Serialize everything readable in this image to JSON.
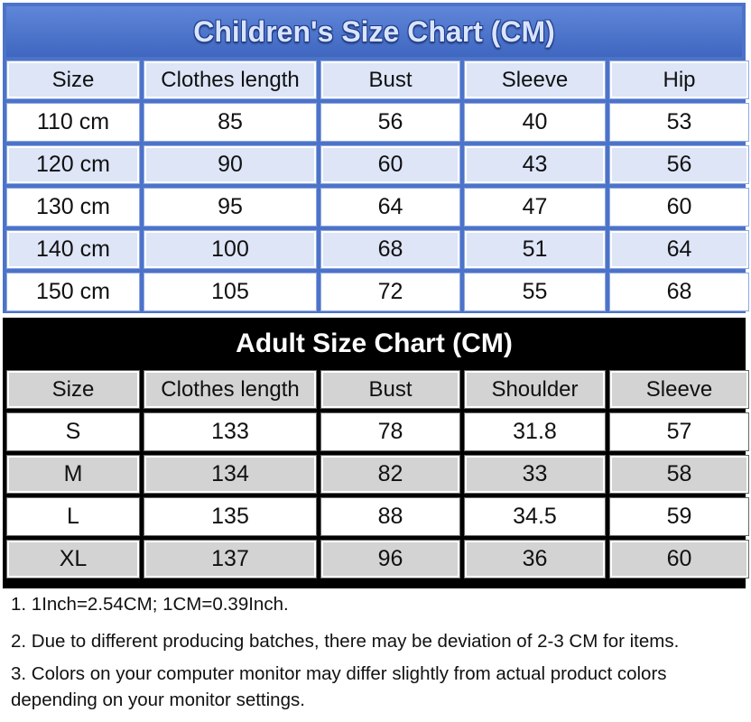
{
  "kids_chart": {
    "title": "Children's Size Chart (CM)",
    "headers": [
      "Size",
      "Clothes length",
      "Bust",
      "Sleeve",
      "Hip"
    ],
    "rows": [
      [
        "110 cm",
        "85",
        "56",
        "40",
        "53"
      ],
      [
        "120 cm",
        "90",
        "60",
        "43",
        "56"
      ],
      [
        "130 cm",
        "95",
        "64",
        "47",
        "60"
      ],
      [
        "140 cm",
        "100",
        "68",
        "51",
        "64"
      ],
      [
        "150 cm",
        "105",
        "72",
        "55",
        "68"
      ]
    ],
    "colors": {
      "frame": "#4d73c9",
      "title_text": "#d9e4ff",
      "shade": "#dde5f7"
    }
  },
  "adult_chart": {
    "title": "Adult Size Chart (CM)",
    "headers": [
      "Size",
      "Clothes length",
      "Bust",
      "Shoulder",
      "Sleeve"
    ],
    "rows": [
      [
        "S",
        "133",
        "78",
        "31.8",
        "57"
      ],
      [
        "M",
        "134",
        "82",
        "33",
        "58"
      ],
      [
        "L",
        "135",
        "88",
        "34.5",
        "59"
      ],
      [
        "XL",
        "137",
        "96",
        "36",
        "60"
      ]
    ],
    "colors": {
      "frame": "#000000",
      "title_text": "#ffffff",
      "shade": "#d3d3d3"
    }
  },
  "notes": [
    "1. 1Inch=2.54CM; 1CM=0.39Inch.",
    "2. Due to different producing batches, there may be deviation of 2-3 CM for items.",
    "3. Colors on your computer monitor may differ slightly from actual product colors depending on your monitor settings."
  ]
}
